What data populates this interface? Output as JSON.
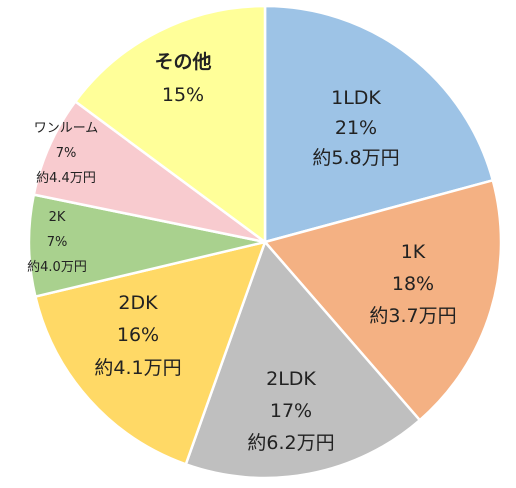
{
  "chart_data": {
    "type": "pie",
    "start": "12 o'clock",
    "direction": "clockwise",
    "slices": [
      {
        "name": "1LDK",
        "value": 21,
        "percent_label": "21%",
        "price_label": "約5.8万円",
        "color": "#9DC3E6"
      },
      {
        "name": "1K",
        "value": 18,
        "percent_label": "18%",
        "price_label": "約3.7万円",
        "color": "#F4B183"
      },
      {
        "name": "2LDK",
        "value": 17,
        "percent_label": "17%",
        "price_label": "約6.2万円",
        "color": "#BFBFBF"
      },
      {
        "name": "2DK",
        "value": 16,
        "percent_label": "16%",
        "price_label": "約4.1万円",
        "color": "#FFD966"
      },
      {
        "name": "2K",
        "value": 7,
        "percent_label": "7%",
        "price_label": "約4.0万円",
        "color": "#A9D18E"
      },
      {
        "name": "ワンルーム",
        "value": 7,
        "percent_label": "7%",
        "price_label": "約4.4万円",
        "color": "#F8CBCF"
      },
      {
        "name": "その他",
        "value": 15,
        "percent_label": "15%",
        "price_label": "",
        "color": "#FFFF99"
      }
    ]
  }
}
